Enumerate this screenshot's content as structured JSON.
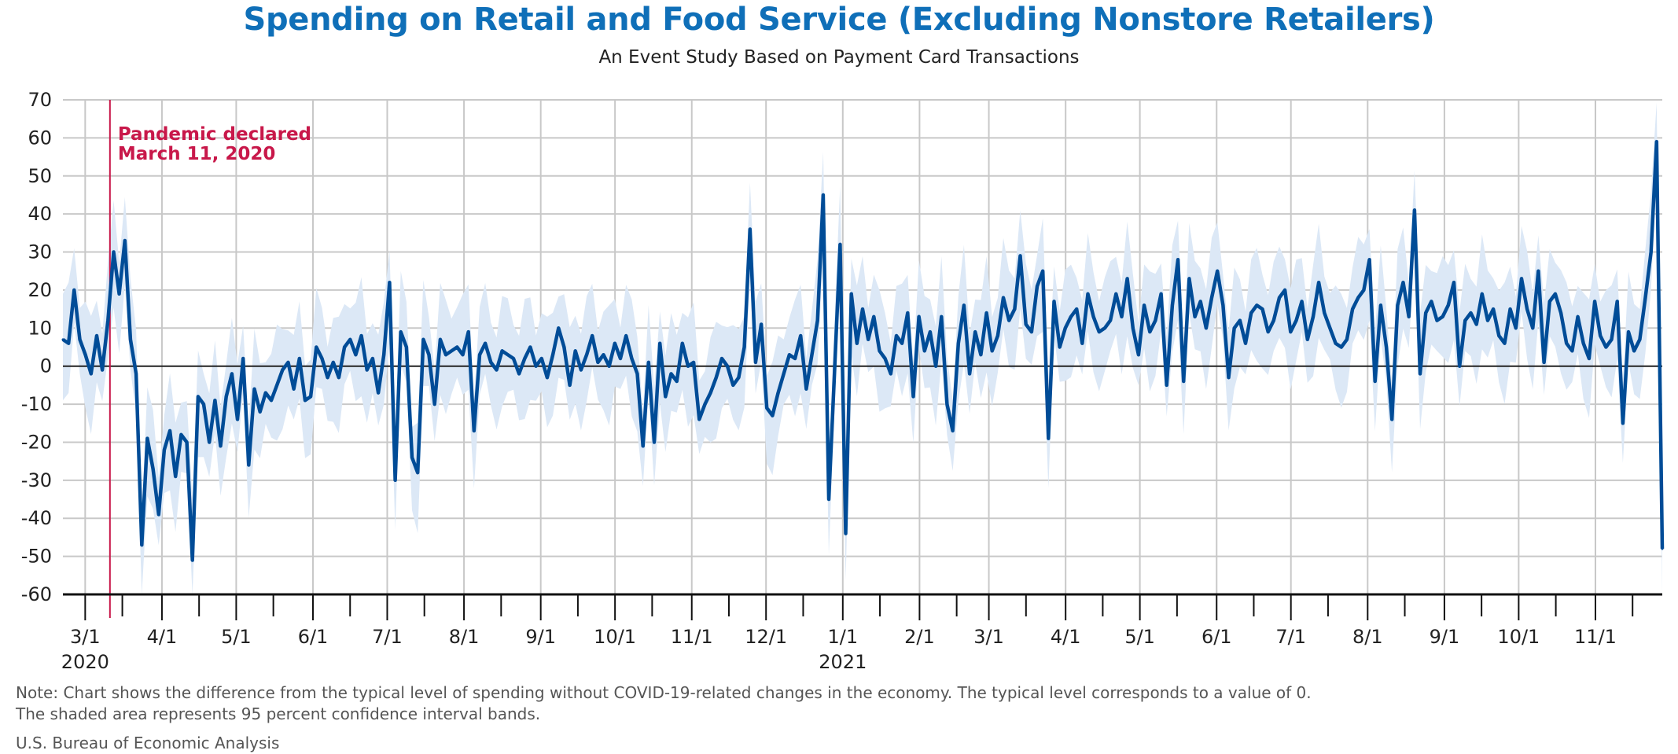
{
  "chart_data": {
    "type": "line",
    "title": "Spending on Retail and Food Service (Excluding Nonstore Retailers)",
    "subtitle": "An Event Study Based on Payment Card Transactions",
    "xlabel": "",
    "ylabel": "",
    "ylim": [
      -60,
      70
    ],
    "yticks": [
      70,
      60,
      50,
      40,
      30,
      20,
      10,
      0,
      -10,
      -20,
      -30,
      -40,
      -50,
      -60
    ],
    "grid": true,
    "x_start_date": "2020-02-21",
    "x_end_date": "2021-11-28",
    "x_step_days": 3,
    "xticks": [
      {
        "label": "3/1",
        "date": "2020-03-01",
        "year": "2020"
      },
      {
        "label": "4/1",
        "date": "2020-04-01"
      },
      {
        "label": "5/1",
        "date": "2020-05-01"
      },
      {
        "label": "6/1",
        "date": "2020-06-01"
      },
      {
        "label": "7/1",
        "date": "2020-07-01"
      },
      {
        "label": "8/1",
        "date": "2020-08-01"
      },
      {
        "label": "9/1",
        "date": "2020-09-01"
      },
      {
        "label": "10/1",
        "date": "2020-10-01"
      },
      {
        "label": "11/1",
        "date": "2020-11-01"
      },
      {
        "label": "12/1",
        "date": "2020-12-01"
      },
      {
        "label": "1/1",
        "date": "2021-01-01",
        "year": "2021"
      },
      {
        "label": "2/1",
        "date": "2021-02-01"
      },
      {
        "label": "3/1",
        "date": "2021-03-01"
      },
      {
        "label": "4/1",
        "date": "2021-04-01"
      },
      {
        "label": "5/1",
        "date": "2021-05-01"
      },
      {
        "label": "6/1",
        "date": "2021-06-01"
      },
      {
        "label": "7/1",
        "date": "2021-07-01"
      },
      {
        "label": "8/1",
        "date": "2021-08-01"
      },
      {
        "label": "9/1",
        "date": "2021-09-01"
      },
      {
        "label": "10/1",
        "date": "2021-10-01"
      },
      {
        "label": "11/1",
        "date": "2021-11-01"
      }
    ],
    "series": [
      {
        "name": "Difference from typical spending",
        "color": "#004c97",
        "values": [
          7,
          6,
          20,
          7,
          3,
          -2,
          8,
          -1,
          12,
          30,
          19,
          33,
          7,
          -2,
          -47,
          -19,
          -27,
          -39,
          -22,
          -17,
          -29,
          -18,
          -20,
          -51,
          -8,
          -10,
          -20,
          -9,
          -21,
          -8,
          -2,
          -14,
          2,
          -26,
          -6,
          -12,
          -7,
          -9,
          -5,
          -1,
          1,
          -6,
          2,
          -9,
          -8,
          5,
          2,
          -3,
          1,
          -3,
          5,
          7,
          3,
          8,
          -1,
          2,
          -7,
          3,
          22,
          -30,
          9,
          5,
          -24,
          -28,
          7,
          3,
          -10,
          7,
          3,
          4,
          5,
          3,
          9,
          -17,
          3,
          6,
          1,
          -1,
          4,
          3,
          2,
          -2,
          2,
          5,
          0,
          2,
          -3,
          3,
          10,
          5,
          -5,
          4,
          -1,
          3,
          8,
          1,
          3,
          0,
          6,
          2,
          8,
          2,
          -2,
          -21,
          1,
          -20,
          6,
          -8,
          -2,
          -4,
          6,
          0,
          1,
          -14,
          -10,
          -7,
          -3,
          2,
          0,
          -5,
          -3,
          5,
          36,
          1,
          11,
          -11,
          -13,
          -7,
          -2,
          3,
          2,
          8,
          -6,
          3,
          12,
          45,
          -35,
          -2,
          32,
          -44,
          19,
          6,
          15,
          7,
          13,
          4,
          2,
          -2,
          8,
          6,
          14,
          -8,
          13,
          4,
          9,
          0,
          13,
          -10,
          -17,
          6,
          16,
          -2,
          9,
          3,
          14,
          4,
          8,
          18,
          12,
          15,
          29,
          11,
          9,
          21,
          25,
          -19,
          17,
          5,
          10,
          13,
          15,
          6,
          19,
          13,
          9,
          10,
          12,
          19,
          13,
          23,
          10,
          3,
          16,
          9,
          12,
          19,
          -5,
          16,
          28,
          -4,
          23,
          13,
          17,
          10,
          18,
          25,
          16,
          -3,
          10,
          12,
          6,
          14,
          16,
          15,
          9,
          12,
          18,
          20,
          9,
          12,
          17,
          7,
          13,
          22,
          14,
          10,
          6,
          5,
          7,
          15,
          18,
          20,
          28,
          -4,
          16,
          5,
          -14,
          16,
          22,
          13,
          41,
          -2,
          14,
          17,
          12,
          13,
          16,
          22,
          0,
          12,
          14,
          11,
          19,
          12,
          15,
          8,
          6,
          15,
          10,
          23,
          15,
          10,
          25,
          1,
          17,
          19,
          14,
          6,
          4,
          13,
          6,
          2,
          17,
          8,
          5,
          7,
          17,
          -15,
          9,
          4,
          7,
          18,
          30,
          59,
          -48
        ]
      }
    ],
    "band": {
      "name": "95 percent confidence interval",
      "color": "#dce8f6",
      "half_width": 12
    },
    "annotations": [
      {
        "text_line1": "Pandemic declared",
        "text_line2": "March 11, 2020",
        "date": "2020-03-11",
        "color": "#c8184a"
      }
    ],
    "zero_line": true
  },
  "notes": {
    "line1": "Note: Chart shows the difference from the typical level of spending without COVID-19-related changes in the economy. The typical level corresponds to a value of 0.",
    "line2": "The shaded area represents 95 percent confidence interval bands.",
    "source": "U.S. Bureau of Economic Analysis"
  }
}
